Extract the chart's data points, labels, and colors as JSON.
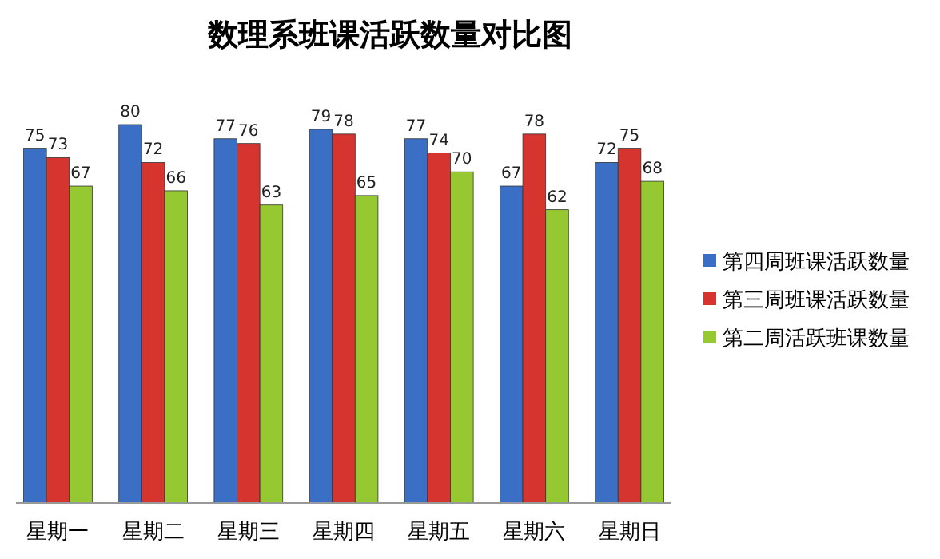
{
  "chart_data": {
    "type": "bar",
    "title": "数理系班课活跃数量对比图",
    "categories": [
      "星期一",
      "星期二",
      "星期三",
      "星期四",
      "星期五",
      "星期六",
      "星期日"
    ],
    "series": [
      {
        "name": "第四周班课活跃数量",
        "color": "#3b6fc6",
        "values": [
          75,
          80,
          77,
          79,
          77,
          67,
          72
        ]
      },
      {
        "name": "第三周班课活跃数量",
        "color": "#d6352f",
        "values": [
          73,
          72,
          76,
          78,
          74,
          78,
          75
        ]
      },
      {
        "name": "第二周活跃班课数量",
        "color": "#96c832",
        "values": [
          67,
          66,
          63,
          65,
          70,
          62,
          68
        ]
      }
    ],
    "data_labels": true,
    "legend": "right",
    "grid": false
  }
}
